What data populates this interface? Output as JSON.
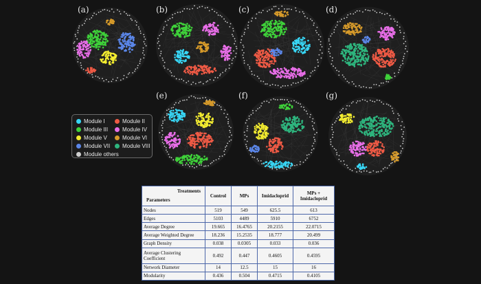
{
  "panels": [
    "(a)",
    "(b)",
    "(c)",
    "(d)",
    "(e)",
    "(f)",
    "(g)"
  ],
  "legend": [
    {
      "label": "Module I",
      "color": "#38d6f5"
    },
    {
      "label": "Module II",
      "color": "#ef5a45"
    },
    {
      "label": "Module III",
      "color": "#3fd23a"
    },
    {
      "label": "Module IV",
      "color": "#e86ee8"
    },
    {
      "label": "Module V",
      "color": "#f3ec30"
    },
    {
      "label": "Module VI",
      "color": "#d69a2a"
    },
    {
      "label": "Module VII",
      "color": "#5b86e8"
    },
    {
      "label": "Module VIII",
      "color": "#2eb57e"
    },
    {
      "label": "Module others",
      "color": "#cfcfcf"
    }
  ],
  "table": {
    "corner_top": "Treatments",
    "corner_bottom": "Parameters",
    "columns": [
      "Control",
      "MPs",
      "Imidacloprid",
      "MPs + Imidacloprid"
    ],
    "rows": [
      {
        "param": "Nodes",
        "values": [
          "519",
          "549",
          "625.5",
          "613"
        ]
      },
      {
        "param": "Edges",
        "values": [
          "5103",
          "4489",
          "5910",
          "6752"
        ]
      },
      {
        "param": "Average Degree",
        "values": [
          "19.665",
          "16.4765",
          "20.2155",
          "22.0715"
        ]
      },
      {
        "param": "Average Weighted Degree",
        "values": [
          "18.236",
          "15.2535",
          "18.777",
          "20.499"
        ]
      },
      {
        "param": "Graph Density",
        "values": [
          "0.038",
          "0.0305",
          "0.033",
          "0.036"
        ]
      },
      {
        "param": "Average Clustering Coefficient",
        "values": [
          "0.492",
          "0.447",
          "0.4605",
          "0.4595"
        ]
      },
      {
        "param": "Network Diameter",
        "values": [
          "14",
          "12.5",
          "15",
          "16"
        ]
      },
      {
        "param": "Modularity",
        "values": [
          "0.436",
          "0.504",
          "0.4715",
          "0.4105"
        ]
      }
    ]
  }
}
